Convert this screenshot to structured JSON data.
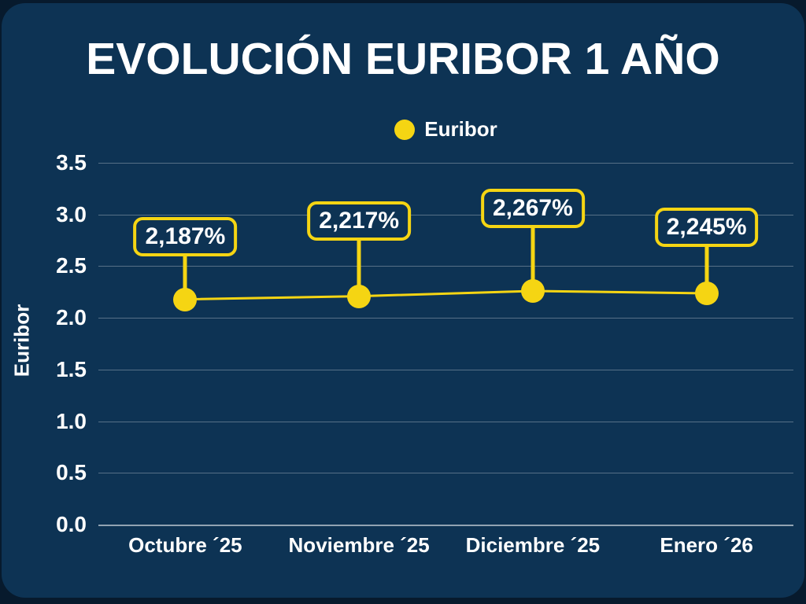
{
  "colors": {
    "outer_background": "#071a2d",
    "card_background": "#0d3354",
    "accent_yellow": "#f5d513",
    "text": "#ffffff",
    "gridline": "rgba(255,255,255,0.30)"
  },
  "header": {
    "title": "EVOLUCIÓN EURIBOR 1 AÑO"
  },
  "legend": {
    "items": [
      {
        "label": "Euribor",
        "marker": "circle",
        "marker_color": "#f5d513"
      }
    ]
  },
  "chart_data": {
    "type": "line",
    "title": "EVOLUCIÓN EURIBOR 1 AÑO",
    "xlabel": "",
    "ylabel": "Euribor",
    "categories": [
      "Octubre ´25",
      "Noviembre ´25",
      "Diciembre ´25",
      "Enero ´26"
    ],
    "series": [
      {
        "name": "Euribor",
        "values": [
          2.187,
          2.217,
          2.267,
          2.245
        ],
        "data_labels": [
          "2,187%",
          "2,217%",
          "2,267%",
          "2,245%"
        ]
      }
    ],
    "ylim": [
      0.0,
      3.5
    ],
    "yticks": [
      "0.0",
      "0.5",
      "1.0",
      "1.5",
      "2.0",
      "2.5",
      "3.0",
      "3.5"
    ],
    "grid": true,
    "legend_position": "top-center"
  }
}
